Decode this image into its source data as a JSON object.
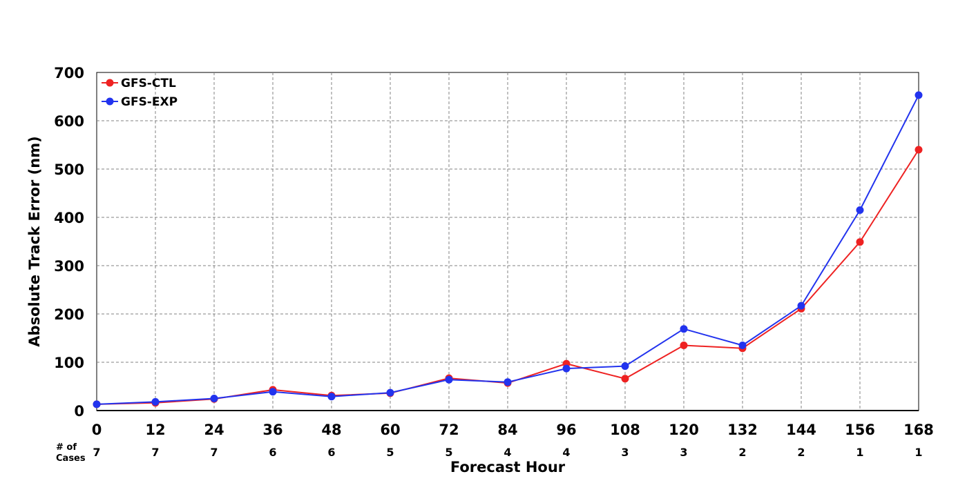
{
  "chart_data": {
    "type": "line",
    "title": "",
    "xlabel": "Forecast Hour",
    "ylabel": "Absolute Track Error (nm)",
    "x": [
      0,
      12,
      24,
      36,
      48,
      60,
      72,
      84,
      96,
      108,
      120,
      132,
      144,
      156,
      168
    ],
    "xlim": [
      0,
      168
    ],
    "ylim": [
      0,
      700
    ],
    "yticks": [
      0,
      100,
      200,
      300,
      400,
      500,
      600,
      700
    ],
    "grid": true,
    "legend_position": "top-left",
    "series": [
      {
        "name": "GFS-CTL",
        "color": "#ee2222",
        "values": [
          13,
          16,
          24,
          43,
          31,
          36,
          67,
          57,
          97,
          66,
          135,
          129,
          211,
          349,
          540
        ]
      },
      {
        "name": "GFS-EXP",
        "color": "#2233ee",
        "values": [
          13,
          18,
          25,
          39,
          29,
          37,
          64,
          59,
          87,
          92,
          169,
          135,
          217,
          415,
          653
        ]
      }
    ],
    "cases_label": "# of Cases",
    "cases_label_lines": [
      "# of",
      "Cases"
    ],
    "cases": [
      7,
      7,
      7,
      6,
      6,
      5,
      5,
      4,
      4,
      3,
      3,
      2,
      2,
      1,
      1
    ]
  }
}
